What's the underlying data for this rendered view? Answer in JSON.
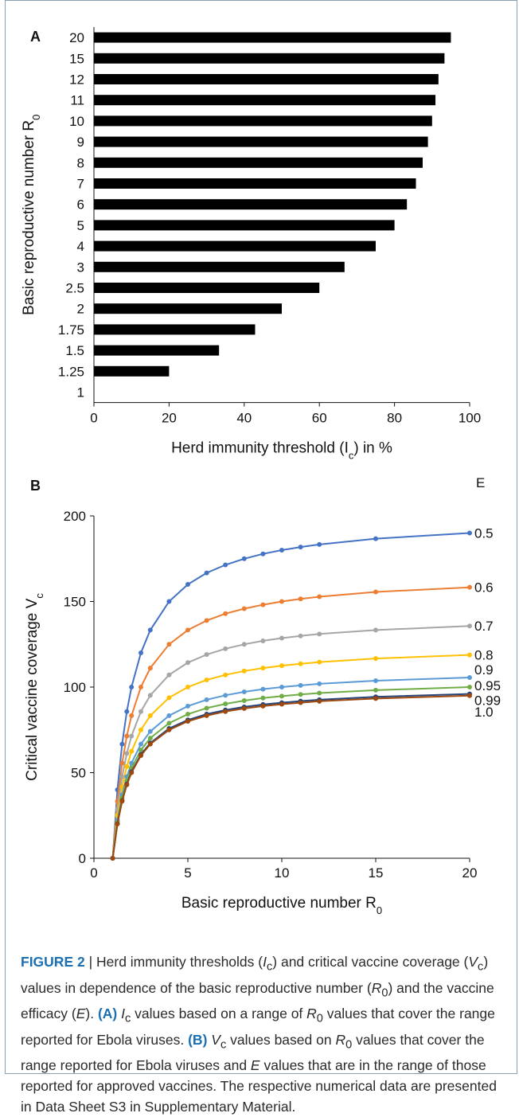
{
  "chart_data": [
    {
      "type": "bar",
      "orientation": "horizontal",
      "panel_label": "A",
      "categories": [
        "20",
        "15",
        "12",
        "11",
        "10",
        "9",
        "8",
        "7",
        "6",
        "5",
        "4",
        "3",
        "2.5",
        "2",
        "1.75",
        "1.5",
        "1.25",
        "1"
      ],
      "values": [
        95,
        93.3,
        91.7,
        90.9,
        90,
        88.9,
        87.5,
        85.7,
        83.3,
        80,
        75,
        66.7,
        60,
        50,
        42.9,
        33.3,
        20,
        0
      ],
      "xlabel": "Herd immunity threshold (I",
      "xlabel_sub": "c",
      "xlabel_suffix": ") in %",
      "ylabel": "Basic reproductive number R",
      "ylabel_sub": "0",
      "xlim": [
        0,
        100
      ],
      "xticks": [
        "0",
        "20",
        "40",
        "60",
        "80",
        "100"
      ],
      "bar_color": "#000000"
    },
    {
      "type": "line",
      "panel_label": "B",
      "x": [
        1,
        1.25,
        1.5,
        1.75,
        2,
        2.5,
        3,
        4,
        5,
        6,
        7,
        8,
        9,
        10,
        11,
        12,
        15,
        20
      ],
      "legend_title": "E",
      "series": [
        {
          "name": "0.5",
          "color": "#4472c4",
          "values": [
            0,
            40,
            66.7,
            85.7,
            100,
            120,
            133.3,
            150,
            160,
            166.7,
            171.4,
            175,
            177.8,
            180,
            181.8,
            183.3,
            186.7,
            190
          ]
        },
        {
          "name": "0.6",
          "color": "#ed7d31",
          "values": [
            0,
            33.3,
            55.6,
            71.4,
            83.3,
            100,
            111.1,
            125,
            133.3,
            138.9,
            142.9,
            145.8,
            148.1,
            150,
            151.5,
            152.8,
            155.6,
            158.3
          ]
        },
        {
          "name": "0.7",
          "color": "#a5a5a5",
          "values": [
            0,
            28.6,
            47.6,
            61.2,
            71.4,
            85.7,
            95.2,
            107.1,
            114.3,
            119,
            122.4,
            125,
            127,
            128.6,
            129.9,
            131,
            133.3,
            135.7
          ]
        },
        {
          "name": "0.8",
          "color": "#ffc000",
          "values": [
            0,
            25,
            41.7,
            53.6,
            62.5,
            75,
            83.3,
            93.8,
            100,
            104.2,
            107.1,
            109.4,
            111.1,
            112.5,
            113.6,
            114.6,
            116.7,
            118.8
          ]
        },
        {
          "name": "0.9",
          "color": "#5b9bd5",
          "values": [
            0,
            22.2,
            37,
            47.6,
            55.6,
            66.7,
            74.1,
            83.3,
            88.9,
            92.6,
            95.2,
            97.2,
            98.8,
            100,
            101,
            101.9,
            103.7,
            105.6
          ]
        },
        {
          "name": "0.95",
          "color": "#70ad47",
          "values": [
            0,
            21.1,
            35.1,
            45.1,
            52.6,
            63.2,
            70.2,
            78.9,
            84.2,
            87.7,
            90.2,
            92.1,
            93.6,
            94.7,
            95.7,
            96.5,
            98.2,
            100
          ]
        },
        {
          "name": "0.99",
          "color": "#264478",
          "values": [
            0,
            20.2,
            33.7,
            43.3,
            50.5,
            60.6,
            67.3,
            75.8,
            80.8,
            84.2,
            86.6,
            88.4,
            89.8,
            90.9,
            91.8,
            92.6,
            94.3,
            96
          ]
        },
        {
          "name": "1.0",
          "color": "#9e480e",
          "values": [
            0,
            20,
            33.3,
            42.9,
            50,
            60,
            66.7,
            75,
            80,
            83.3,
            85.7,
            87.5,
            88.9,
            90,
            90.9,
            91.7,
            93.3,
            95
          ]
        }
      ],
      "xlabel": "Basic reproductive number R",
      "xlabel_sub": "0",
      "ylabel": "Critical vaccine coverage V",
      "ylabel_sub": "c",
      "xlim": [
        0,
        20
      ],
      "ylim": [
        0,
        200
      ],
      "xticks": [
        "0",
        "5",
        "10",
        "15",
        "20"
      ],
      "yticks": [
        "0",
        "50",
        "100",
        "150",
        "200"
      ],
      "grid": false
    }
  ],
  "caption": {
    "lead": "FIGURE 2",
    "sep": " | ",
    "t1": "Herd immunity thresholds (",
    "t1_sym": "I",
    "t1_sub": "c",
    "t2": ") and critical vaccine coverage (",
    "t2_sym": "V",
    "t2_sub": "c",
    "t3": ") values in dependence of the basic reproductive number (",
    "t3_sym": "R",
    "t3_sub": "0",
    "t4": ") and the vaccine efficacy (",
    "t4_sym": "E",
    "t5": "). ",
    "a_label": "(A)",
    "a_sym": "I",
    "a_sub": "c",
    "a_text1": " values based on a range of ",
    "a_sym2": "R",
    "a_sub2": "0",
    "a_text2": " values that cover the range reported for Ebola viruses. ",
    "b_label": "(B)",
    "b_sym": "V",
    "b_sub": "c",
    "b_text1": " values based on ",
    "b_sym2": "R",
    "b_sub2": "0",
    "b_text2": " values that cover the range reported for Ebola viruses and ",
    "b_sym3": "E",
    "b_text3": " values that are in the range of those reported for approved vaccines. The respective numerical data are presented in Data Sheet S3 in Supplementary Material."
  }
}
